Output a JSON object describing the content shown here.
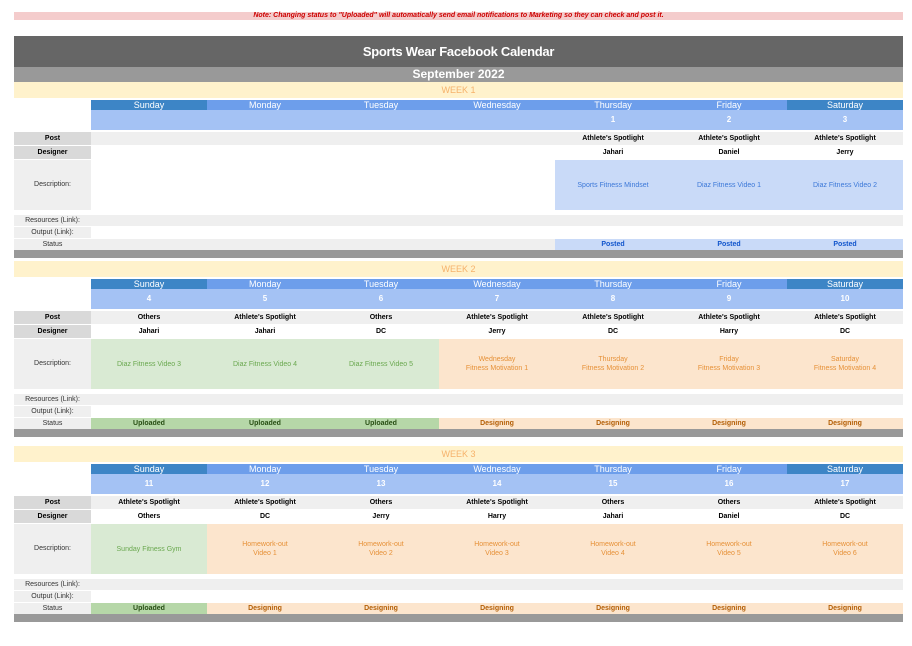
{
  "note": "Note: Changing status to \"Uploaded\" will automatically send email notifications to Marketing so they can check and post it.",
  "title": "Sports Wear Facebook Calendar",
  "month": "September 2022",
  "row_labels": {
    "post": "Post",
    "designer": "Designer",
    "description": "Description:",
    "resources": "Resources (Link):",
    "output": "Output (Link):",
    "status": "Status"
  },
  "days": [
    "Sunday",
    "Monday",
    "Tuesday",
    "Wednesday",
    "Thursday",
    "Friday",
    "Saturday"
  ],
  "weeks": [
    {
      "label": "WEEK 1",
      "dates": [
        "",
        "",
        "",
        "",
        "1",
        "2",
        "3"
      ],
      "posts": [
        "",
        "",
        "",
        "",
        "Athlete's Spotlight",
        "Athlete's Spotlight",
        "Athlete's Spotlight"
      ],
      "designers": [
        "",
        "",
        "",
        "",
        "Jahari",
        "Daniel",
        "Jerry"
      ],
      "descriptions": [
        "",
        "",
        "",
        "",
        "Sports Fitness Mindset",
        "Diaz Fitness Video 1",
        "Diaz Fitness Video 2"
      ],
      "statuses": [
        "",
        "",
        "",
        "",
        "Posted",
        "Posted",
        "Posted"
      ]
    },
    {
      "label": "WEEK 2",
      "dates": [
        "4",
        "5",
        "6",
        "7",
        "8",
        "9",
        "10"
      ],
      "posts": [
        "Others",
        "Athlete's Spotlight",
        "Others",
        "Athlete's Spotlight",
        "Athlete's Spotlight",
        "Athlete's Spotlight",
        "Athlete's Spotlight"
      ],
      "designers": [
        "Jahari",
        "Jahari",
        "DC",
        "Jerry",
        "DC",
        "Harry",
        "DC"
      ],
      "descriptions": [
        "Diaz Fitness Video 3",
        "Diaz Fitness Video 4",
        "Diaz Fitness Video 5",
        "Wednesday\nFitness Motivation 1",
        "Thursday\nFitness Motivation 2",
        "Friday\nFitness Motivation 3",
        "Saturday\nFitness Motivation 4"
      ],
      "statuses": [
        "Uploaded",
        "Uploaded",
        "Uploaded",
        "Designing",
        "Designing",
        "Designing",
        "Designing"
      ]
    },
    {
      "label": "WEEK 3",
      "dates": [
        "11",
        "12",
        "13",
        "14",
        "15",
        "16",
        "17"
      ],
      "posts": [
        "Athlete's Spotlight",
        "Athlete's Spotlight",
        "Others",
        "Athlete's Spotlight",
        "Others",
        "Others",
        "Athlete's Spotlight"
      ],
      "designers": [
        "Others",
        "DC",
        "Jerry",
        "Harry",
        "Jahari",
        "Daniel",
        "DC"
      ],
      "descriptions": [
        "Sunday Fitness Gym",
        "Homework-out\nVideo 1",
        "Homework-out\nVideo 2",
        "Homework-out\nVideo 3",
        "Homework-out\nVideo 4",
        "Homework-out\nVideo 5",
        "Homework-out\nVideo 6"
      ],
      "statuses": [
        "Uploaded",
        "Designing",
        "Designing",
        "Designing",
        "Designing",
        "Designing",
        "Designing"
      ]
    }
  ],
  "colors": {
    "posted": "#c9daf8",
    "uploaded": "#b6d7a8",
    "designing": "#fce5cd",
    "day_header": "#6d9eeb",
    "title_bar": "#666666"
  }
}
